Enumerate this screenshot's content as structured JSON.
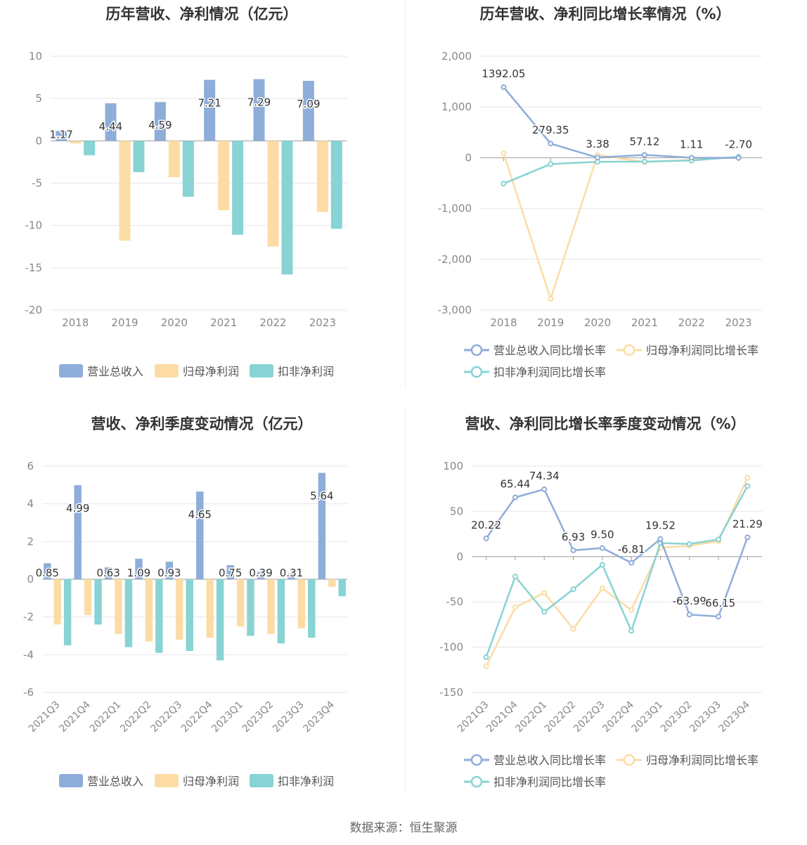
{
  "colors": {
    "revenue": "#8eadd9",
    "net_profit": "#fcdca4",
    "deducted_profit": "#88d3d3",
    "axis": "#888888",
    "grid": "#e6e6ee",
    "label": "#333333"
  },
  "chart_data": [
    {
      "type": "bar",
      "title": "历年营收、净利情况（亿元）",
      "categories": [
        "2018",
        "2019",
        "2020",
        "2021",
        "2022",
        "2023"
      ],
      "series": [
        {
          "name": "营业总收入",
          "values": [
            1.17,
            4.44,
            4.59,
            7.21,
            7.29,
            7.09
          ]
        },
        {
          "name": "归母净利润",
          "values": [
            -0.3,
            -11.8,
            -4.3,
            -8.2,
            -12.5,
            -8.4
          ]
        },
        {
          "name": "扣非净利润",
          "values": [
            -1.7,
            -3.7,
            -6.6,
            -11.1,
            -15.8,
            -10.4
          ]
        }
      ],
      "labels": [
        "1.17",
        "4.44",
        "4.59",
        "7.21",
        "7.29",
        "7.09"
      ],
      "ylim": [
        -20,
        10
      ],
      "yticks": [
        "10",
        "5",
        "0",
        "-5",
        "-10",
        "-15",
        "-20"
      ],
      "legend": "bottom"
    },
    {
      "type": "line",
      "title": "历年营收、净利同比增长率情况（%）",
      "categories": [
        "2018",
        "2019",
        "2020",
        "2021",
        "2022",
        "2023"
      ],
      "series": [
        {
          "name": "营业总收入同比增长率",
          "values": [
            1392.05,
            279.35,
            3.38,
            57.12,
            1.11,
            -2.7
          ]
        },
        {
          "name": "归母净利润同比增长率",
          "values": [
            85,
            -2780,
            55,
            -85,
            -40,
            10
          ]
        },
        {
          "name": "扣非净利润同比增长率",
          "values": [
            -510,
            -125,
            -80,
            -75,
            -55,
            20
          ]
        }
      ],
      "labels": [
        "1392.05",
        "279.35",
        "3.38",
        "57.12",
        "1.11",
        "-2.70"
      ],
      "ylim": [
        -3000,
        2000
      ],
      "yticks": [
        "2,000",
        "1,000",
        "0",
        "-1,000",
        "-2,000",
        "-3,000"
      ],
      "legend": "bottom"
    },
    {
      "type": "bar",
      "title": "营收、净利季度变动情况（亿元）",
      "categories": [
        "2021Q3",
        "2021Q4",
        "2022Q1",
        "2022Q2",
        "2022Q3",
        "2022Q4",
        "2023Q1",
        "2023Q2",
        "2023Q3",
        "2023Q4"
      ],
      "series": [
        {
          "name": "营业总收入",
          "values": [
            0.85,
            4.99,
            0.63,
            1.09,
            0.93,
            4.65,
            0.75,
            0.39,
            0.31,
            5.64
          ]
        },
        {
          "name": "归母净利润",
          "values": [
            -2.4,
            -1.9,
            -2.9,
            -3.3,
            -3.2,
            -3.1,
            -2.5,
            -2.9,
            -2.6,
            -0.4
          ]
        },
        {
          "name": "扣非净利润",
          "values": [
            -3.5,
            -2.4,
            -3.6,
            -3.9,
            -3.8,
            -4.3,
            -3.0,
            -3.4,
            -3.1,
            -0.9
          ]
        }
      ],
      "labels": [
        "0.85",
        "4.99",
        "0.63",
        "1.09",
        "0.93",
        "4.65",
        "0.75",
        "0.39",
        "0.31",
        "5.64"
      ],
      "ylim": [
        -6,
        6
      ],
      "yticks": [
        "6",
        "4",
        "2",
        "0",
        "-2",
        "-4",
        "-6"
      ],
      "legend": "bottom"
    },
    {
      "type": "line",
      "title": "营收、净利同比增长率季度变动情况（%）",
      "categories": [
        "2021Q3",
        "2021Q4",
        "2022Q1",
        "2022Q2",
        "2022Q3",
        "2022Q4",
        "2023Q1",
        "2023Q2",
        "2023Q3",
        "2023Q4"
      ],
      "series": [
        {
          "name": "营业总收入同比增长率",
          "values": [
            20.22,
            65.44,
            74.34,
            6.93,
            9.5,
            -6.81,
            19.52,
            -63.99,
            -66.15,
            21.29
          ]
        },
        {
          "name": "归母净利润同比增长率",
          "values": [
            -121,
            -56,
            -40,
            -80,
            -35,
            -59,
            10,
            12,
            17,
            87
          ]
        },
        {
          "name": "扣非净利润同比增长率",
          "values": [
            -111,
            -22,
            -61,
            -36,
            -9,
            -82,
            15,
            14,
            19,
            78
          ]
        }
      ],
      "labels": [
        "20.22",
        "65.44",
        "74.34",
        "6.93",
        "9.50",
        "-6.81",
        "19.52",
        "-63.99",
        "-66.15",
        "21.29"
      ],
      "ylim": [
        -150,
        100
      ],
      "yticks": [
        "100",
        "50",
        "0",
        "-50",
        "-100",
        "-150"
      ],
      "legend": "bottom"
    }
  ],
  "footer": "数据来源：恒生聚源"
}
